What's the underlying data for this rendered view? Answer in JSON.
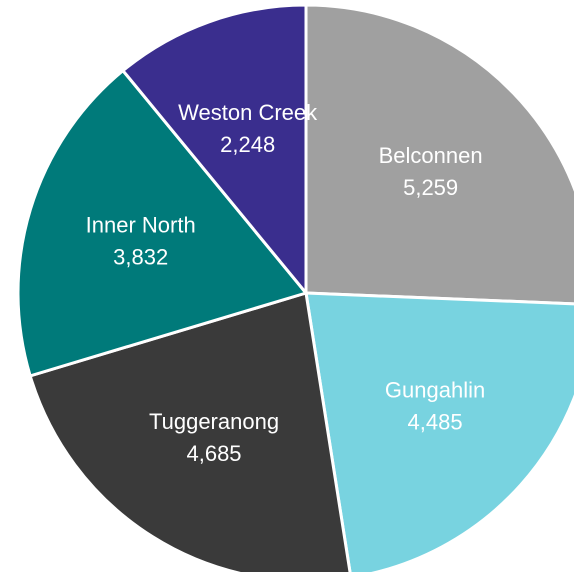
{
  "chart_data": {
    "type": "pie",
    "categories": [
      "Belconnen",
      "Gungahlin",
      "Tuggeranong",
      "Inner North",
      "Weston Creek"
    ],
    "values": [
      5259,
      4485,
      4685,
      3832,
      2248
    ],
    "value_labels": [
      "5,259",
      "4,485",
      "4,685",
      "3,832",
      "2,248"
    ],
    "colors": [
      "#a0a0a0",
      "#78d3e0",
      "#3a3a3a",
      "#007a7a",
      "#3a2e8e"
    ]
  }
}
